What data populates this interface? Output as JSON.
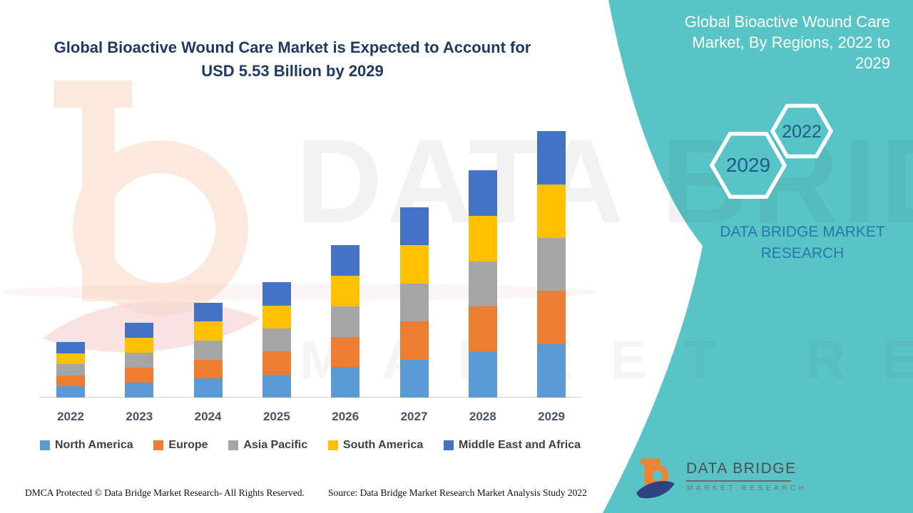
{
  "header": {
    "title_line1": "Global Bioactive Wound Care Market is Expected to Account for",
    "title_line2": "USD 5.53 Billion by 2029",
    "title_color": "#1F3864"
  },
  "side_panel": {
    "background_color": "#58C4C6",
    "title_line1": "Global Bioactive Wound Care",
    "title_line2": "Market, By Regions, 2022 to",
    "title_line3": "2029",
    "hexagon_back_label": "2029",
    "hexagon_front_label": "2022",
    "hexagon_text_color": "#1F5C8B",
    "caption_line1": "DATA BRIDGE MARKET",
    "caption_line2": "RESEARCH",
    "caption_color": "#2778A8",
    "logo_name": "DATA BRIDGE",
    "logo_sub": "MARKET RESEARCH"
  },
  "chart_data": {
    "type": "bar",
    "stacked": true,
    "title": "Global Bioactive Wound Care Market is Expected to Account for USD 5.53 Billion by 2029",
    "unit": "USD Billion",
    "categories": [
      "2022",
      "2023",
      "2024",
      "2025",
      "2026",
      "2027",
      "2028",
      "2029"
    ],
    "series": [
      {
        "name": "North America",
        "color": "#5B9BD5",
        "values": [
          0.23,
          0.312,
          0.394,
          0.478,
          0.632,
          0.79,
          0.944,
          1.106
        ]
      },
      {
        "name": "Europe",
        "color": "#ED7D31",
        "values": [
          0.23,
          0.312,
          0.394,
          0.478,
          0.632,
          0.79,
          0.944,
          1.106
        ]
      },
      {
        "name": "Asia Pacific",
        "color": "#A5A5A5",
        "values": [
          0.23,
          0.312,
          0.394,
          0.478,
          0.632,
          0.79,
          0.944,
          1.106
        ]
      },
      {
        "name": "South America",
        "color": "#FFC000",
        "values": [
          0.23,
          0.312,
          0.394,
          0.478,
          0.632,
          0.79,
          0.944,
          1.106
        ]
      },
      {
        "name": "Middle East and Africa",
        "color": "#4472C4",
        "values": [
          0.23,
          0.312,
          0.394,
          0.478,
          0.632,
          0.79,
          0.944,
          1.106
        ]
      }
    ],
    "totals_estimated": [
      1.15,
      1.56,
      1.97,
      2.39,
      3.16,
      3.95,
      4.72,
      5.53
    ],
    "ylim": [
      0,
      5.6
    ],
    "y_axis_shown": false,
    "gridlines": false,
    "legend_position": "bottom",
    "note": "Values estimated from segment pixel heights; each year's total splits into five nearly equal regional segments; 2029 total stated as USD 5.53 billion."
  },
  "footer": {
    "dmca": "DMCA Protected © Data Bridge Market Research- All Rights Reserved.",
    "source": "Source: Data Bridge Market Research Market Analysis Study 2022"
  },
  "watermarks": {
    "big_text": "DATA BRIDGE",
    "sub_text": "MARKET RESEARCH"
  }
}
